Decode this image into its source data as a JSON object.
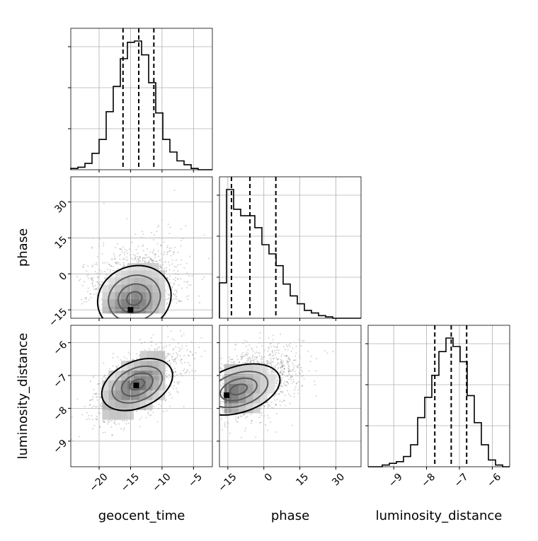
{
  "chart_data": {
    "type": "corner",
    "parameters": [
      "geocent_time",
      "phase",
      "luminosity_distance"
    ],
    "axis_labels": {
      "x": [
        "geocent_time",
        "phase",
        "luminosity_distance"
      ],
      "y": [
        "phase",
        "luminosity_distance"
      ]
    },
    "ranges": {
      "geocent_time": [
        -24.5,
        -2
      ],
      "phase": [
        -18.5,
        40.5
      ],
      "luminosity_distance": [
        -9.78,
        -5.47
      ]
    },
    "ticks": {
      "geocent_time": [
        -20,
        -15,
        -10,
        -5
      ],
      "phase": [
        -15,
        0,
        15,
        30
      ],
      "luminosity_distance": [
        -9,
        -8,
        -7,
        -6
      ]
    },
    "tick_labels": {
      "geocent_time": [
        "−20",
        "−15",
        "−10",
        "−5"
      ],
      "phase": [
        "−15",
        "0",
        "15",
        "30"
      ],
      "luminosity_distance": [
        "−9",
        "−8",
        "−7",
        "−6"
      ]
    },
    "quantiles": {
      "geocent_time": [
        -16.2,
        -13.7,
        -11.3
      ],
      "phase": [
        -13.5,
        -5.8,
        5.0
      ],
      "luminosity_distance": [
        -7.75,
        -7.25,
        -6.78
      ]
    },
    "histograms": {
      "geocent_time": {
        "edges": [
          -24.5,
          -23.375,
          -22.25,
          -21.125,
          -20.0,
          -18.875,
          -17.75,
          -16.625,
          -15.5,
          -14.375,
          -13.25,
          -12.125,
          -11.0,
          -9.875,
          -8.75,
          -7.625,
          -6.5,
          -5.375,
          -4.25,
          -3.125,
          -2.0
        ],
        "counts": [
          1,
          2,
          5,
          13,
          24,
          46,
          66,
          88,
          101,
          102,
          91,
          69,
          45,
          24,
          14,
          7,
          4,
          1,
          0,
          0
        ]
      },
      "phase": {
        "edges": [
          -18.5,
          -15.55,
          -12.6,
          -9.65,
          -6.7,
          -3.75,
          -0.8,
          2.15,
          5.1,
          8.05,
          11.0,
          13.95,
          16.9,
          19.85,
          22.8,
          25.75,
          28.7,
          31.65,
          34.6,
          37.55,
          40.5
        ],
        "counts": [
          27,
          98,
          83,
          78,
          78,
          69,
          56,
          49,
          40,
          26,
          17,
          11,
          6,
          4,
          2,
          1,
          0,
          0,
          0,
          0
        ]
      },
      "luminosity_distance": {
        "edges": [
          -9.78,
          -9.5645,
          -9.349,
          -9.1335,
          -8.918,
          -8.7025,
          -8.487,
          -8.2715,
          -8.056,
          -7.8405,
          -7.625,
          -7.4095,
          -7.194,
          -6.9785,
          -6.763,
          -6.5475,
          -6.332,
          -6.1165,
          -5.901,
          -5.6855,
          -5.47
        ],
        "counts": [
          0,
          0,
          1,
          2,
          3,
          6,
          13,
          29,
          41,
          54,
          68,
          76,
          71,
          62,
          42,
          26,
          13,
          4,
          1,
          0
        ]
      }
    },
    "density_2d": [
      {
        "x": "geocent_time",
        "y": "phase",
        "grid_x": [
          -19,
          -18,
          -17,
          -16,
          -15,
          -14,
          -13,
          -12,
          -11,
          -10
        ],
        "grid_y": [
          -15,
          -12,
          -9,
          -6,
          -3,
          0,
          3
        ],
        "peak": [
          -15,
          -15
        ],
        "contour_levels": 4
      },
      {
        "x": "geocent_time",
        "y": "luminosity_distance",
        "grid_x": [
          -19,
          -18,
          -17,
          -16,
          -15,
          -14,
          -13,
          -12,
          -11,
          -10
        ],
        "grid_y": [
          -8.2,
          -7.9,
          -7.6,
          -7.3,
          -7.0,
          -6.7,
          -6.4
        ],
        "peak": [
          -14.1,
          -7.3
        ],
        "contour_levels": 4
      },
      {
        "x": "phase",
        "y": "luminosity_distance",
        "grid_x": [
          -15,
          -12,
          -9,
          -6,
          -3,
          0,
          3,
          6
        ],
        "grid_y": [
          -8.0,
          -7.7,
          -7.4,
          -7.1,
          -6.8
        ],
        "peak": [
          -15.5,
          -7.6
        ],
        "contour_levels": 4
      }
    ]
  }
}
